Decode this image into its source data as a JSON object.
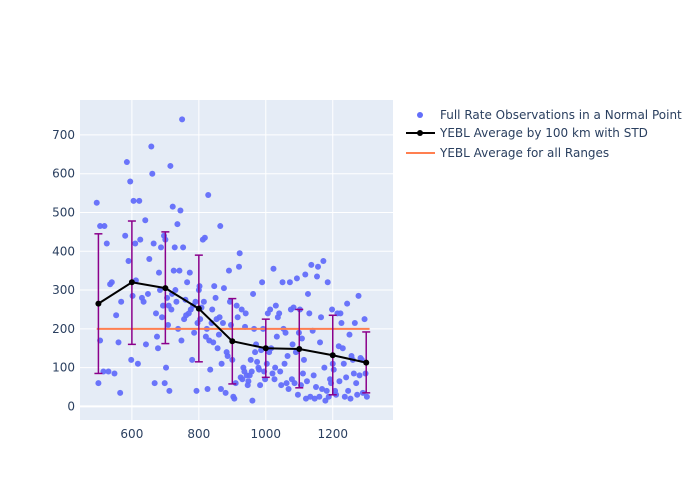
{
  "chart_data": {
    "type": "scatter",
    "title": "",
    "xlabel": "",
    "ylabel": "",
    "xlim": [
      445,
      1380
    ],
    "ylim": [
      -35,
      790
    ],
    "x_ticks": [
      600,
      800,
      1000,
      1200
    ],
    "y_ticks": [
      0,
      100,
      200,
      300,
      400,
      500,
      600,
      700
    ],
    "x_tick_labels": [
      "600",
      "800",
      "1000",
      "1200"
    ],
    "y_tick_labels": [
      "0",
      "100",
      "200",
      "300",
      "400",
      "500",
      "600",
      "700"
    ],
    "grid": true,
    "legend_position": "right",
    "series": [
      {
        "name": "Full Rate Observations in a Normal Point",
        "kind": "scatter",
        "color": "#636efa",
        "points": [
          [
            495,
            525
          ],
          [
            505,
            465
          ],
          [
            500,
            60
          ],
          [
            505,
            170
          ],
          [
            515,
            90
          ],
          [
            518,
            465
          ],
          [
            525,
            420
          ],
          [
            530,
            90
          ],
          [
            535,
            315
          ],
          [
            540,
            320
          ],
          [
            548,
            85
          ],
          [
            553,
            235
          ],
          [
            560,
            165
          ],
          [
            565,
            35
          ],
          [
            568,
            270
          ],
          [
            580,
            440
          ],
          [
            585,
            630
          ],
          [
            590,
            375
          ],
          [
            595,
            580
          ],
          [
            598,
            120
          ],
          [
            602,
            285
          ],
          [
            605,
            530
          ],
          [
            610,
            420
          ],
          [
            612,
            325
          ],
          [
            618,
            110
          ],
          [
            622,
            530
          ],
          [
            625,
            430
          ],
          [
            630,
            280
          ],
          [
            635,
            270
          ],
          [
            640,
            480
          ],
          [
            642,
            160
          ],
          [
            648,
            290
          ],
          [
            652,
            380
          ],
          [
            658,
            670
          ],
          [
            661,
            600
          ],
          [
            665,
            420
          ],
          [
            668,
            60
          ],
          [
            672,
            240
          ],
          [
            675,
            180
          ],
          [
            678,
            150
          ],
          [
            681,
            345
          ],
          [
            684,
            300
          ],
          [
            687,
            410
          ],
          [
            690,
            230
          ],
          [
            693,
            260
          ],
          [
            696,
            440
          ],
          [
            698,
            60
          ],
          [
            700,
            430
          ],
          [
            702,
            100
          ],
          [
            705,
            280
          ],
          [
            708,
            210
          ],
          [
            710,
            260
          ],
          [
            712,
            40
          ],
          [
            715,
            620
          ],
          [
            718,
            250
          ],
          [
            720,
            290
          ],
          [
            722,
            515
          ],
          [
            725,
            350
          ],
          [
            728,
            410
          ],
          [
            730,
            300
          ],
          [
            733,
            270
          ],
          [
            736,
            470
          ],
          [
            738,
            200
          ],
          [
            742,
            350
          ],
          [
            745,
            505
          ],
          [
            748,
            170
          ],
          [
            750,
            740
          ],
          [
            753,
            410
          ],
          [
            756,
            225
          ],
          [
            760,
            275
          ],
          [
            762,
            235
          ],
          [
            765,
            320
          ],
          [
            770,
            240
          ],
          [
            773,
            345
          ],
          [
            776,
            250
          ],
          [
            780,
            120
          ],
          [
            783,
            260
          ],
          [
            786,
            190
          ],
          [
            790,
            270
          ],
          [
            793,
            40
          ],
          [
            796,
            215
          ],
          [
            800,
            300
          ],
          [
            802,
            310
          ],
          [
            804,
            225
          ],
          [
            808,
            255
          ],
          [
            812,
            430
          ],
          [
            815,
            270
          ],
          [
            818,
            435
          ],
          [
            821,
            180
          ],
          [
            824,
            200
          ],
          [
            826,
            45
          ],
          [
            828,
            545
          ],
          [
            831,
            170
          ],
          [
            834,
            95
          ],
          [
            838,
            215
          ],
          [
            840,
            250
          ],
          [
            843,
            165
          ],
          [
            846,
            310
          ],
          [
            850,
            280
          ],
          [
            853,
            225
          ],
          [
            856,
            150
          ],
          [
            860,
            185
          ],
          [
            862,
            230
          ],
          [
            864,
            465
          ],
          [
            866,
            45
          ],
          [
            868,
            110
          ],
          [
            872,
            215
          ],
          [
            875,
            305
          ],
          [
            880,
            35
          ],
          [
            883,
            140
          ],
          [
            886,
            130
          ],
          [
            890,
            350
          ],
          [
            893,
            270
          ],
          [
            896,
            210
          ],
          [
            900,
            120
          ],
          [
            903,
            25
          ],
          [
            906,
            20
          ],
          [
            910,
            60
          ],
          [
            913,
            260
          ],
          [
            916,
            230
          ],
          [
            920,
            360
          ],
          [
            922,
            395
          ],
          [
            925,
            75
          ],
          [
            928,
            250
          ],
          [
            930,
            70
          ],
          [
            933,
            100
          ],
          [
            936,
            90
          ],
          [
            938,
            205
          ],
          [
            940,
            240
          ],
          [
            943,
            80
          ],
          [
            946,
            55
          ],
          [
            948,
            65
          ],
          [
            952,
            80
          ],
          [
            955,
            120
          ],
          [
            958,
            90
          ],
          [
            960,
            15
          ],
          [
            962,
            290
          ],
          [
            965,
            200
          ],
          [
            968,
            140
          ],
          [
            971,
            160
          ],
          [
            974,
            115
          ],
          [
            978,
            100
          ],
          [
            980,
            95
          ],
          [
            983,
            55
          ],
          [
            986,
            145
          ],
          [
            989,
            320
          ],
          [
            992,
            200
          ],
          [
            995,
            90
          ],
          [
            998,
            70
          ],
          [
            1000,
            150
          ],
          [
            1003,
            110
          ],
          [
            1006,
            240
          ],
          [
            1010,
            140
          ],
          [
            1013,
            250
          ],
          [
            1016,
            150
          ],
          [
            1020,
            85
          ],
          [
            1023,
            355
          ],
          [
            1026,
            70
          ],
          [
            1028,
            100
          ],
          [
            1030,
            260
          ],
          [
            1033,
            180
          ],
          [
            1036,
            230
          ],
          [
            1040,
            240
          ],
          [
            1043,
            90
          ],
          [
            1046,
            55
          ],
          [
            1050,
            320
          ],
          [
            1053,
            200
          ],
          [
            1056,
            110
          ],
          [
            1059,
            190
          ],
          [
            1062,
            60
          ],
          [
            1065,
            130
          ],
          [
            1068,
            45
          ],
          [
            1072,
            320
          ],
          [
            1075,
            250
          ],
          [
            1078,
            70
          ],
          [
            1080,
            160
          ],
          [
            1083,
            255
          ],
          [
            1086,
            60
          ],
          [
            1090,
            140
          ],
          [
            1093,
            330
          ],
          [
            1096,
            30
          ],
          [
            1099,
            190
          ],
          [
            1102,
            250
          ],
          [
            1105,
            55
          ],
          [
            1108,
            175
          ],
          [
            1111,
            85
          ],
          [
            1114,
            120
          ],
          [
            1118,
            340
          ],
          [
            1120,
            20
          ],
          [
            1123,
            65
          ],
          [
            1126,
            290
          ],
          [
            1130,
            240
          ],
          [
            1133,
            25
          ],
          [
            1136,
            365
          ],
          [
            1140,
            195
          ],
          [
            1143,
            80
          ],
          [
            1146,
            20
          ],
          [
            1150,
            50
          ],
          [
            1153,
            335
          ],
          [
            1156,
            360
          ],
          [
            1160,
            25
          ],
          [
            1162,
            165
          ],
          [
            1165,
            230
          ],
          [
            1168,
            45
          ],
          [
            1172,
            375
          ],
          [
            1175,
            100
          ],
          [
            1178,
            15
          ],
          [
            1182,
            40
          ],
          [
            1185,
            320
          ],
          [
            1188,
            25
          ],
          [
            1192,
            70
          ],
          [
            1195,
            60
          ],
          [
            1198,
            250
          ],
          [
            1200,
            110
          ],
          [
            1203,
            95
          ],
          [
            1207,
            40
          ],
          [
            1210,
            30
          ],
          [
            1214,
            240
          ],
          [
            1218,
            155
          ],
          [
            1220,
            65
          ],
          [
            1223,
            240
          ],
          [
            1226,
            215
          ],
          [
            1230,
            150
          ],
          [
            1233,
            110
          ],
          [
            1236,
            25
          ],
          [
            1240,
            75
          ],
          [
            1243,
            265
          ],
          [
            1246,
            40
          ],
          [
            1250,
            185
          ],
          [
            1253,
            20
          ],
          [
            1256,
            130
          ],
          [
            1260,
            120
          ],
          [
            1263,
            85
          ],
          [
            1266,
            215
          ],
          [
            1270,
            60
          ],
          [
            1273,
            30
          ],
          [
            1277,
            285
          ],
          [
            1280,
            80
          ],
          [
            1283,
            125
          ],
          [
            1287,
            120
          ],
          [
            1290,
            35
          ],
          [
            1295,
            225
          ],
          [
            1298,
            85
          ],
          [
            1302,
            25
          ]
        ]
      },
      {
        "name": "YEBL Average by 100 km with STD",
        "kind": "line_errorbar",
        "color": "#000000",
        "error_color": "#8b008b",
        "x": [
          500,
          600,
          700,
          800,
          900,
          1000,
          1100,
          1200,
          1300
        ],
        "y": [
          265,
          320,
          305,
          252,
          168,
          150,
          148,
          132,
          113
        ],
        "err_low": [
          85,
          160,
          162,
          115,
          58,
          75,
          48,
          30,
          35
        ],
        "err_high": [
          445,
          478,
          450,
          390,
          278,
          225,
          250,
          235,
          192
        ]
      },
      {
        "name": "YEBL Average for all Ranges",
        "kind": "hline",
        "color": "#ff7f50",
        "x": [
          495,
          1310
        ],
        "y": 200
      }
    ]
  }
}
